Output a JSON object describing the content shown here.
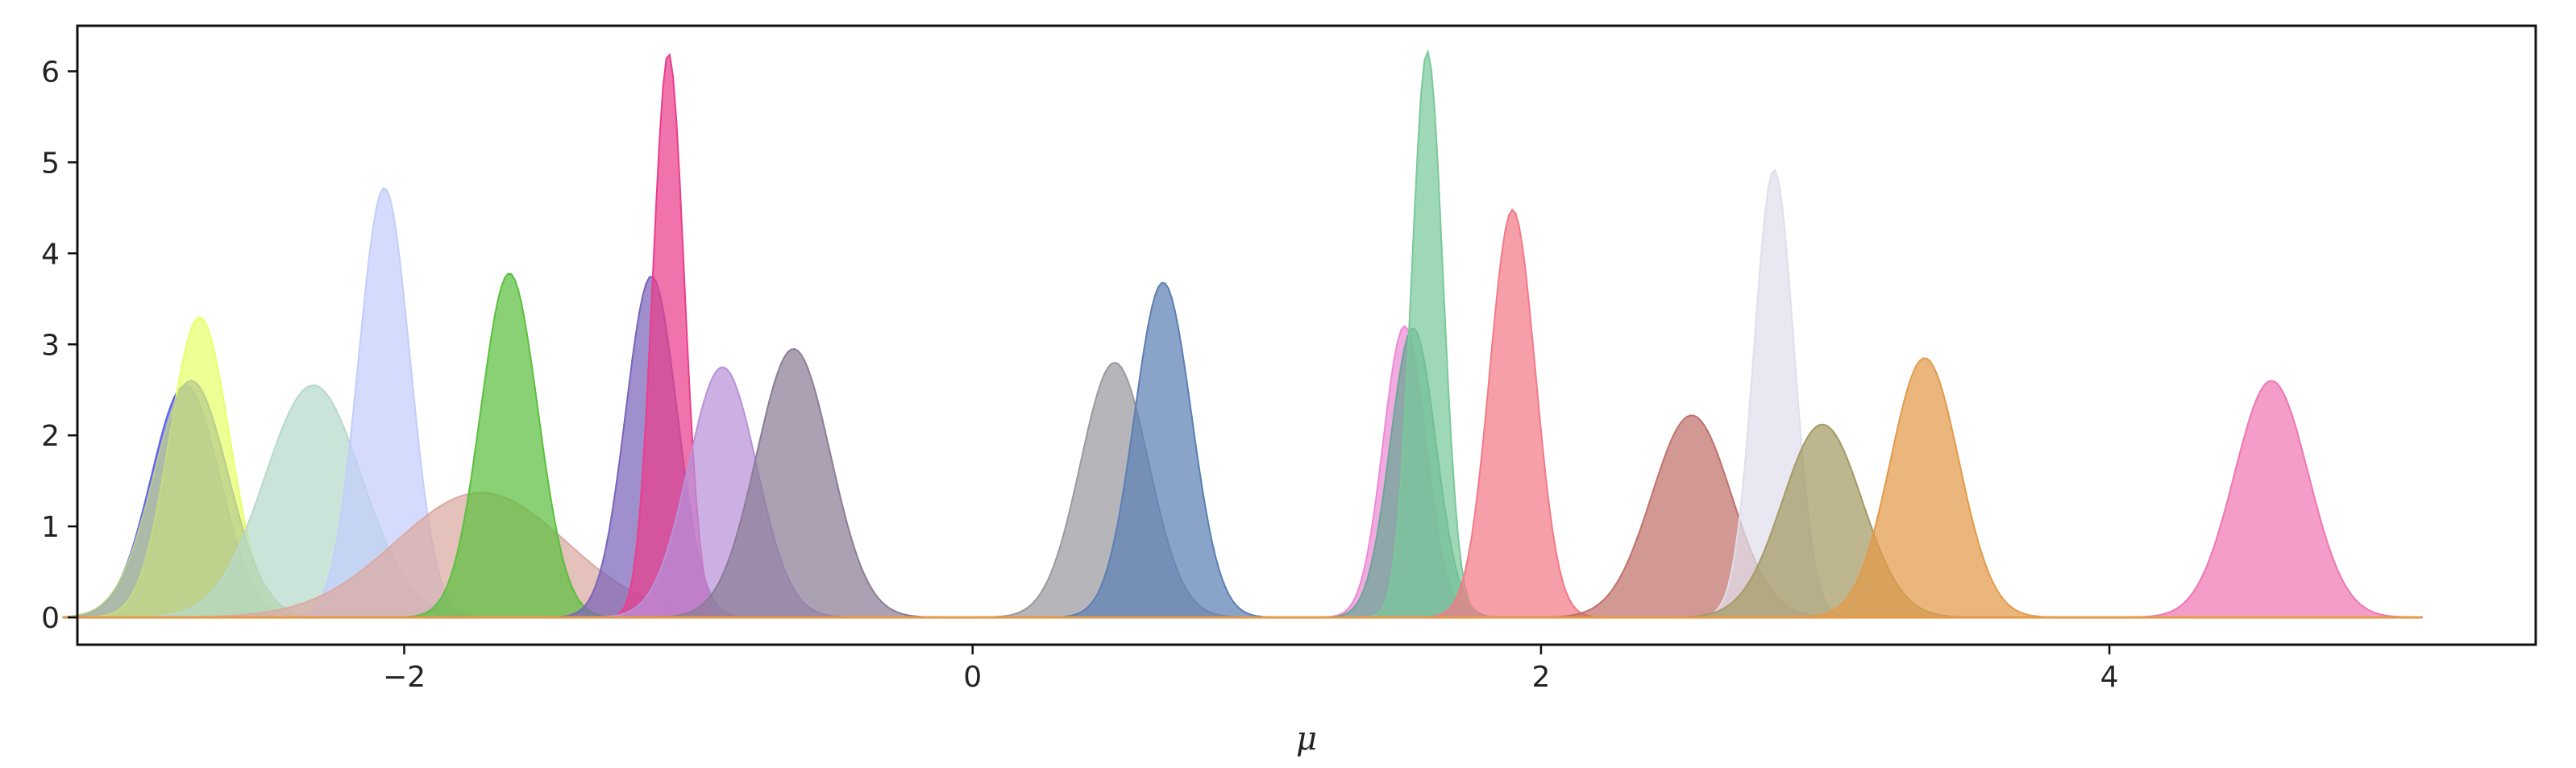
{
  "chart_data": {
    "type": "area",
    "title": "",
    "xlabel": "μ",
    "ylabel": "",
    "xlim": [
      -3.15,
      5.5
    ],
    "ylim": [
      -0.3,
      6.5
    ],
    "xticks": [
      -2,
      0,
      2,
      4
    ],
    "xtick_labels": [
      "−2",
      "0",
      "2",
      "4"
    ],
    "yticks": [
      0,
      1,
      2,
      3,
      4,
      5,
      6
    ],
    "ytick_labels": [
      "0",
      "1",
      "2",
      "3",
      "4",
      "5",
      "6"
    ],
    "grid": false,
    "legend": "none",
    "x_range": [
      -3.2,
      5.1
    ],
    "series": [
      {
        "mu": -2.77,
        "sigma": 0.12,
        "peak": 2.55,
        "color": "#5b5ff0"
      },
      {
        "mu": -2.72,
        "sigma": 0.105,
        "peak": 3.3,
        "color": "#e7ff6b"
      },
      {
        "mu": -2.75,
        "sigma": 0.13,
        "peak": 2.6,
        "color": "#b8cc8c"
      },
      {
        "mu": -2.32,
        "sigma": 0.17,
        "peak": 2.55,
        "color": "#b5d9ca"
      },
      {
        "mu": -2.07,
        "sigma": 0.09,
        "peak": 4.72,
        "color": "#c3cdfb"
      },
      {
        "mu": -1.73,
        "sigma": 0.3,
        "peak": 1.37,
        "color": "#dba9a1"
      },
      {
        "mu": -1.63,
        "sigma": 0.1,
        "peak": 3.78,
        "color": "#5bbf3f"
      },
      {
        "mu": -1.13,
        "sigma": 0.09,
        "peak": 3.75,
        "color": "#7a64b9"
      },
      {
        "mu": -1.07,
        "sigma": 0.055,
        "peak": 6.2,
        "color": "#ea3d8c"
      },
      {
        "mu": -0.88,
        "sigma": 0.12,
        "peak": 2.75,
        "color": "#b891d9"
      },
      {
        "mu": -0.63,
        "sigma": 0.13,
        "peak": 2.95,
        "color": "#8a7d96"
      },
      {
        "mu": 0.5,
        "sigma": 0.12,
        "peak": 2.8,
        "color": "#9a9a9f"
      },
      {
        "mu": 0.67,
        "sigma": 0.1,
        "peak": 3.68,
        "color": "#5b7fb4"
      },
      {
        "mu": 1.52,
        "sigma": 0.075,
        "peak": 3.2,
        "color": "#ec8ad6"
      },
      {
        "mu": 1.55,
        "sigma": 0.08,
        "peak": 3.18,
        "color": "#6aa595"
      },
      {
        "mu": 1.6,
        "sigma": 0.055,
        "peak": 6.22,
        "color": "#79c99a"
      },
      {
        "mu": 1.9,
        "sigma": 0.08,
        "peak": 4.48,
        "color": "#f37a87"
      },
      {
        "mu": 2.53,
        "sigma": 0.14,
        "peak": 2.22,
        "color": "#c0716b"
      },
      {
        "mu": 2.82,
        "sigma": 0.07,
        "peak": 4.92,
        "color": "#e0deec"
      },
      {
        "mu": 2.99,
        "sigma": 0.14,
        "peak": 2.12,
        "color": "#a39a63"
      },
      {
        "mu": 3.35,
        "sigma": 0.12,
        "peak": 2.85,
        "color": "#e39a4a"
      },
      {
        "mu": 4.57,
        "sigma": 0.13,
        "peak": 2.6,
        "color": "#ef77b3"
      }
    ]
  }
}
